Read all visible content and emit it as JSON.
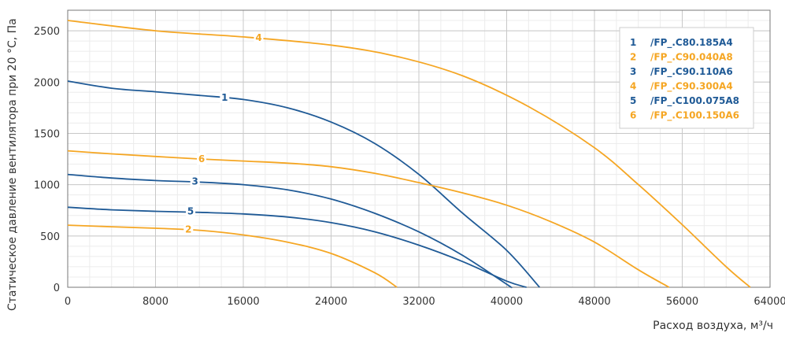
{
  "chart_data": {
    "type": "line",
    "xlabel": "Расход воздуха, м³/ч",
    "ylabel": "Статическое давление вентилятора при 20 °C, Па",
    "xlim": [
      0,
      64000
    ],
    "ylim": [
      0,
      2700
    ],
    "x_ticks": [
      "0",
      "8000",
      "16000",
      "24000",
      "32000",
      "40000",
      "48000",
      "56000",
      "64000"
    ],
    "y_ticks": [
      "0",
      "500",
      "1000",
      "1500",
      "2000",
      "2500"
    ],
    "grid": true,
    "legend_position": "top-right",
    "colors": {
      "blue": "#1f5a96",
      "orange": "#f5a623"
    },
    "series": [
      {
        "id": "1",
        "name": "/FP_.C80.185A4",
        "color": "blue",
        "label_at": [
          14300,
          1850
        ],
        "points": [
          [
            0,
            2010
          ],
          [
            4000,
            1940
          ],
          [
            8000,
            1905
          ],
          [
            12000,
            1870
          ],
          [
            16000,
            1830
          ],
          [
            20000,
            1750
          ],
          [
            24000,
            1610
          ],
          [
            28000,
            1400
          ],
          [
            32000,
            1100
          ],
          [
            36000,
            720
          ],
          [
            40000,
            360
          ],
          [
            43000,
            0
          ]
        ]
      },
      {
        "id": "2",
        "name": "/FP_.C90.040A8",
        "color": "orange",
        "label_at": [
          11000,
          565
        ],
        "points": [
          [
            0,
            605
          ],
          [
            4000,
            590
          ],
          [
            8000,
            575
          ],
          [
            12000,
            555
          ],
          [
            16000,
            510
          ],
          [
            20000,
            440
          ],
          [
            24000,
            330
          ],
          [
            28000,
            140
          ],
          [
            30000,
            0
          ]
        ]
      },
      {
        "id": "3",
        "name": "/FP_.C90.110A6",
        "color": "blue",
        "label_at": [
          11600,
          1030
        ],
        "points": [
          [
            0,
            1100
          ],
          [
            4000,
            1065
          ],
          [
            8000,
            1040
          ],
          [
            12000,
            1025
          ],
          [
            16000,
            1000
          ],
          [
            20000,
            950
          ],
          [
            24000,
            860
          ],
          [
            28000,
            720
          ],
          [
            32000,
            540
          ],
          [
            36000,
            310
          ],
          [
            40000,
            30
          ],
          [
            40400,
            0
          ]
        ]
      },
      {
        "id": "4",
        "name": "/FP_.C90.300A4",
        "color": "orange",
        "label_at": [
          17400,
          2430
        ],
        "points": [
          [
            0,
            2600
          ],
          [
            8000,
            2500
          ],
          [
            16000,
            2440
          ],
          [
            24000,
            2360
          ],
          [
            30000,
            2250
          ],
          [
            36000,
            2060
          ],
          [
            42000,
            1760
          ],
          [
            48000,
            1360
          ],
          [
            52000,
            1000
          ],
          [
            56000,
            610
          ],
          [
            60000,
            200
          ],
          [
            62200,
            0
          ]
        ]
      },
      {
        "id": "5",
        "name": "/FP_.C100.075A8",
        "color": "blue",
        "label_at": [
          11200,
          740
        ],
        "points": [
          [
            0,
            780
          ],
          [
            4000,
            755
          ],
          [
            8000,
            740
          ],
          [
            12000,
            730
          ],
          [
            16000,
            715
          ],
          [
            20000,
            685
          ],
          [
            24000,
            630
          ],
          [
            28000,
            540
          ],
          [
            32000,
            410
          ],
          [
            36000,
            250
          ],
          [
            40000,
            60
          ],
          [
            41800,
            0
          ]
        ]
      },
      {
        "id": "6",
        "name": "/FP_.C100.150A6",
        "color": "orange",
        "label_at": [
          12200,
          1250
        ],
        "points": [
          [
            0,
            1330
          ],
          [
            4000,
            1300
          ],
          [
            8000,
            1275
          ],
          [
            12000,
            1250
          ],
          [
            16000,
            1230
          ],
          [
            20000,
            1210
          ],
          [
            24000,
            1175
          ],
          [
            28000,
            1110
          ],
          [
            32000,
            1020
          ],
          [
            36000,
            920
          ],
          [
            40000,
            800
          ],
          [
            44000,
            640
          ],
          [
            48000,
            440
          ],
          [
            52000,
            170
          ],
          [
            54800,
            0
          ]
        ]
      }
    ]
  }
}
